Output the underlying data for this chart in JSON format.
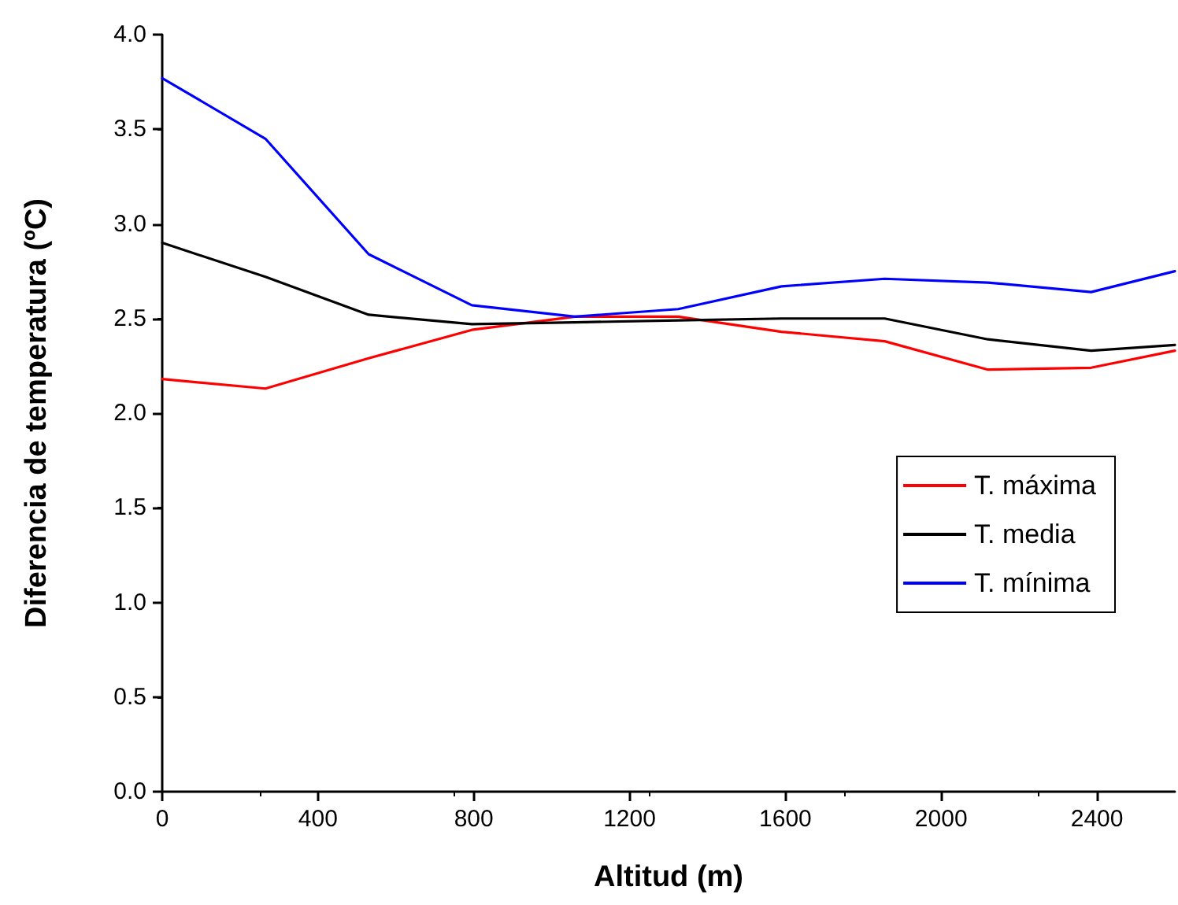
{
  "chart_data": {
    "type": "line",
    "xlabel": "Altitud (m)",
    "ylabel": "Diferencia de temperatura (ºC)",
    "x": [
      0,
      265,
      530,
      795,
      1060,
      1325,
      1590,
      1855,
      2120,
      2385,
      2600
    ],
    "series": [
      {
        "name": "T. máxima",
        "color": "#ff0000",
        "values": [
          2.18,
          2.13,
          2.29,
          2.44,
          2.51,
          2.51,
          2.43,
          2.38,
          2.23,
          2.24,
          2.33
        ]
      },
      {
        "name": "T. media",
        "color": "#000000",
        "values": [
          2.9,
          2.72,
          2.52,
          2.47,
          2.48,
          2.49,
          2.5,
          2.5,
          2.39,
          2.33,
          2.36
        ]
      },
      {
        "name": "T. mínima",
        "color": "#0000ff",
        "values": [
          3.77,
          3.45,
          2.84,
          2.57,
          2.51,
          2.55,
          2.67,
          2.71,
          2.69,
          2.64,
          2.75
        ]
      }
    ],
    "xlim": [
      0,
      2600
    ],
    "xticks": [
      0,
      400,
      800,
      1200,
      1600,
      2000,
      2400
    ],
    "ylim": [
      0,
      4
    ],
    "yticks": [
      {
        "value": 0,
        "label": "0.0"
      },
      {
        "value": 0.5,
        "label": "0.5"
      },
      {
        "value": 1,
        "label": "1.0"
      },
      {
        "value": 1.5,
        "label": "1.5"
      },
      {
        "value": 2,
        "label": "2.0"
      },
      {
        "value": 2.5,
        "label": "2.5"
      },
      {
        "value": 3,
        "label": "3.0"
      },
      {
        "value": 3.5,
        "label": "3.5"
      },
      {
        "value": 4,
        "label": "4.0"
      }
    ],
    "grid": false,
    "legend": "right",
    "marker": "none",
    "line_style": "solid"
  }
}
